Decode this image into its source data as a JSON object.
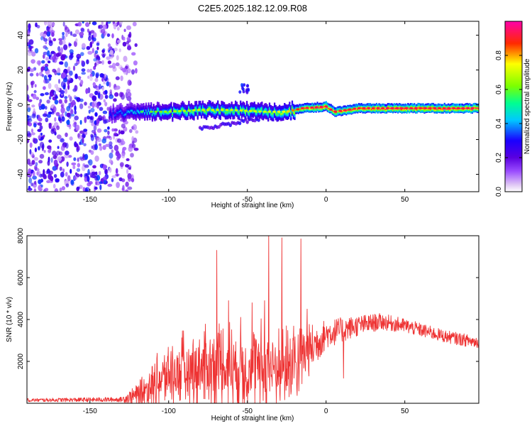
{
  "title": "C2E5.2025.182.12.09.R08",
  "chart_data": [
    {
      "type": "heatmap",
      "title": "",
      "xlabel": "Height of straight line (km)",
      "ylabel": "Frequency (Hz)",
      "xlim": [
        -190,
        97
      ],
      "ylim": [
        -50,
        48
      ],
      "xticks": [
        -150,
        -100,
        -50,
        0,
        50
      ],
      "yticks": [
        -40,
        -20,
        0,
        20,
        40
      ],
      "colorbar": {
        "label": "Normalized spectral amplitude",
        "range": [
          0.0,
          1.0
        ],
        "ticks": [
          0.0,
          0.2,
          0.4,
          0.6,
          0.8
        ],
        "tick_labels": [
          "0.0",
          "0.2",
          "0.4",
          "0.6",
          "0.8"
        ],
        "colormap": [
          "#ffffff",
          "#e0c8f5",
          "#9b4dff",
          "#5a00e0",
          "#1a00ff",
          "#00c8ff",
          "#00ff90",
          "#7cff00",
          "#ffff00",
          "#ff2a00",
          "#ff00aa"
        ]
      },
      "noise_region": {
        "x_range": [
          -190,
          -120
        ],
        "y_range": [
          -50,
          48
        ],
        "amplitude_range": [
          0.05,
          0.35
        ]
      },
      "ridge": {
        "description_points": [
          {
            "x": -136,
            "freq": -5,
            "amp": 0.35
          },
          {
            "x": -120,
            "freq": -4,
            "amp": 0.45
          },
          {
            "x": -100,
            "freq": -4,
            "amp": 0.55
          },
          {
            "x": -80,
            "freq": -3,
            "amp": 0.6
          },
          {
            "x": -60,
            "freq": -3,
            "amp": 0.6
          },
          {
            "x": -40,
            "freq": -4,
            "amp": 0.6
          },
          {
            "x": -25,
            "freq": -4,
            "amp": 0.65
          },
          {
            "x": -15,
            "freq": -2,
            "amp": 0.85
          },
          {
            "x": 0,
            "freq": -1,
            "amp": 0.95
          },
          {
            "x": 5,
            "freq": -4,
            "amp": 0.85
          },
          {
            "x": 20,
            "freq": -2,
            "amp": 0.9
          },
          {
            "x": 50,
            "freq": -2,
            "amp": 0.95
          },
          {
            "x": 95,
            "freq": -2,
            "amp": 0.95
          }
        ],
        "branch": {
          "x_range": [
            -80,
            -20
          ],
          "freq_start": -14,
          "freq_end": -4,
          "amp": 0.25
        },
        "blob": {
          "x": -52,
          "freq": 9,
          "amp": 0.3
        }
      }
    },
    {
      "type": "line",
      "title": "",
      "xlabel": "Height of straight line (km)",
      "ylabel": "SNR (10 * v/v)",
      "xlim": [
        -190,
        97
      ],
      "ylim": [
        0,
        8000
      ],
      "xticks": [
        -150,
        -100,
        -50,
        0,
        50
      ],
      "yticks": [
        2000,
        4000,
        6000,
        8000
      ],
      "color": "#ee3333",
      "series": [
        {
          "envelope": [
            {
              "x": -190,
              "base": 150,
              "amp": 80
            },
            {
              "x": -130,
              "base": 180,
              "amp": 120
            },
            {
              "x": -120,
              "base": 400,
              "amp": 500
            },
            {
              "x": -110,
              "base": 900,
              "amp": 1200
            },
            {
              "x": -100,
              "base": 1400,
              "amp": 1800
            },
            {
              "x": -80,
              "base": 1700,
              "amp": 2200
            },
            {
              "x": -60,
              "base": 1800,
              "amp": 2400
            },
            {
              "x": -40,
              "base": 1700,
              "amp": 2400
            },
            {
              "x": -20,
              "base": 1800,
              "amp": 2000
            },
            {
              "x": -10,
              "base": 2600,
              "amp": 1200
            },
            {
              "x": 0,
              "base": 3300,
              "amp": 700
            },
            {
              "x": 20,
              "base": 3700,
              "amp": 500
            },
            {
              "x": 35,
              "base": 3900,
              "amp": 400
            },
            {
              "x": 50,
              "base": 3700,
              "amp": 350
            },
            {
              "x": 75,
              "base": 3200,
              "amp": 300
            },
            {
              "x": 97,
              "base": 2900,
              "amp": 300
            }
          ],
          "spikes": [
            {
              "x": -69.5,
              "y": 7300
            },
            {
              "x": -62,
              "y": 4900
            },
            {
              "x": -47,
              "y": 4800
            },
            {
              "x": -39,
              "y": 4900
            },
            {
              "x": -36.5,
              "y": 8000
            },
            {
              "x": -28,
              "y": 7900
            },
            {
              "x": -16,
              "y": 7850
            },
            {
              "x": -12,
              "y": 4500
            },
            {
              "x": 11,
              "y": 1200
            }
          ]
        }
      ]
    }
  ]
}
